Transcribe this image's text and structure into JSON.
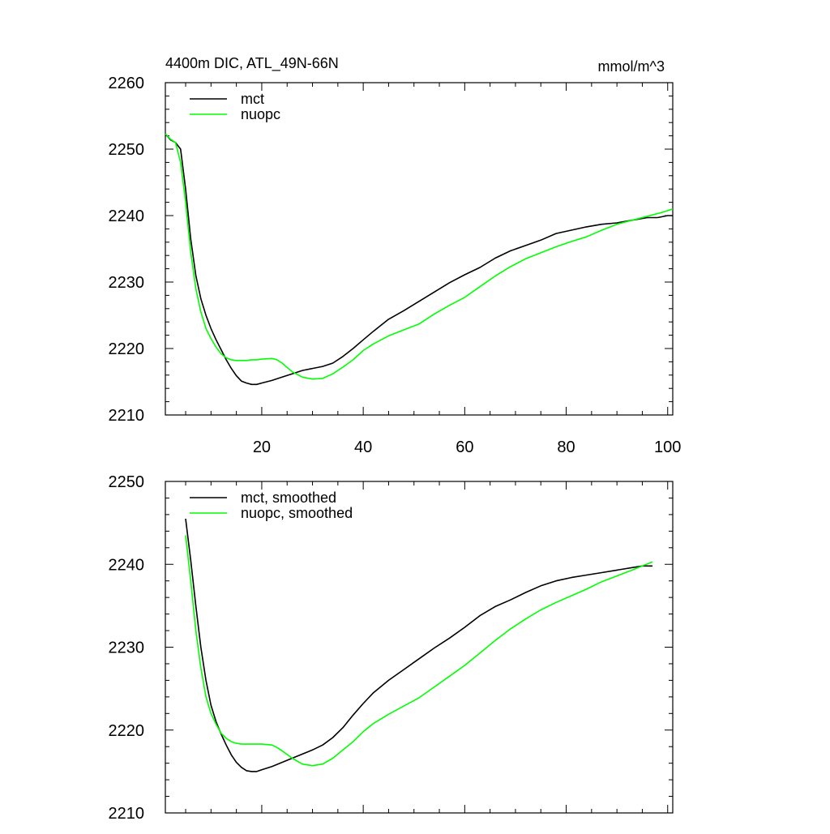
{
  "chart_data": [
    {
      "type": "line",
      "title": "4400m DIC, ATL_49N-66N",
      "units": "mmol/m^3",
      "xlabel": "",
      "ylabel": "",
      "xlim": [
        1,
        101
      ],
      "ylim": [
        2210,
        2260
      ],
      "x_ticks": [
        20,
        40,
        60,
        80,
        100
      ],
      "x_tick_labels": [
        "20",
        "40",
        "60",
        "80",
        "100"
      ],
      "y_ticks": [
        2210,
        2220,
        2230,
        2240,
        2250,
        2260
      ],
      "y_tick_labels": [
        "2210",
        "2220",
        "2230",
        "2240",
        "2250",
        "2260"
      ],
      "legend_position": "top-left",
      "series": [
        {
          "name": "mct",
          "color": "#000000",
          "x": [
            1,
            2,
            3,
            4,
            5,
            6,
            7,
            8,
            9,
            10,
            11,
            12,
            13,
            14,
            15,
            16,
            17,
            18,
            19,
            20,
            22,
            24,
            26,
            28,
            30,
            32,
            34,
            36,
            38,
            40,
            42,
            45,
            48,
            51,
            54,
            57,
            60,
            63,
            66,
            69,
            72,
            75,
            78,
            81,
            84,
            87,
            90,
            93,
            96,
            98,
            100,
            101
          ],
          "values": [
            2252.3,
            2251.4,
            2251.0,
            2250.0,
            2244.0,
            2236.5,
            2231.0,
            2227.5,
            2225.0,
            2223.0,
            2221.3,
            2219.8,
            2218.3,
            2217.0,
            2215.9,
            2215.1,
            2214.8,
            2214.6,
            2214.6,
            2214.8,
            2215.2,
            2215.7,
            2216.2,
            2216.7,
            2217.0,
            2217.3,
            2217.8,
            2218.8,
            2220.0,
            2221.3,
            2222.6,
            2224.4,
            2225.7,
            2227.1,
            2228.5,
            2229.9,
            2231.1,
            2232.2,
            2233.6,
            2234.7,
            2235.5,
            2236.3,
            2237.3,
            2237.8,
            2238.3,
            2238.7,
            2238.9,
            2239.3,
            2239.7,
            2239.7,
            2240.0,
            2240.0
          ]
        },
        {
          "name": "nuopc",
          "color": "#00ff00",
          "x": [
            1,
            2,
            3,
            4,
            5,
            6,
            7,
            8,
            9,
            10,
            11,
            12,
            13,
            14,
            15,
            16,
            17,
            18,
            19,
            20,
            22,
            23,
            24,
            26,
            28,
            30,
            32,
            34,
            36,
            38,
            40,
            42,
            45,
            48,
            51,
            54,
            57,
            60,
            63,
            66,
            69,
            72,
            75,
            78,
            81,
            84,
            87,
            90,
            93,
            96,
            99,
            101
          ],
          "values": [
            2252.3,
            2251.5,
            2251.0,
            2248.0,
            2242.0,
            2234.5,
            2229.0,
            2225.5,
            2223.0,
            2221.5,
            2220.2,
            2219.2,
            2218.6,
            2218.3,
            2218.2,
            2218.2,
            2218.2,
            2218.3,
            2218.3,
            2218.4,
            2218.5,
            2218.3,
            2217.8,
            2216.5,
            2215.7,
            2215.4,
            2215.5,
            2216.2,
            2217.2,
            2218.3,
            2219.7,
            2220.7,
            2221.9,
            2222.8,
            2223.7,
            2225.2,
            2226.5,
            2227.7,
            2229.3,
            2230.9,
            2232.3,
            2233.5,
            2234.4,
            2235.3,
            2236.1,
            2236.8,
            2237.8,
            2238.7,
            2239.3,
            2239.9,
            2240.5,
            2241.0
          ]
        }
      ]
    },
    {
      "type": "line",
      "title": "",
      "xlabel": "",
      "ylabel": "",
      "xlim": [
        1,
        101
      ],
      "ylim": [
        2210,
        2250
      ],
      "x_ticks": [
        20,
        40,
        60,
        80,
        100
      ],
      "y_ticks": [
        2210,
        2220,
        2230,
        2240,
        2250
      ],
      "y_tick_labels": [
        "2210",
        "2220",
        "2230",
        "2240",
        "2250"
      ],
      "legend_position": "top-left",
      "series": [
        {
          "name": "mct, smoothed",
          "color": "#000000",
          "x": [
            5,
            6,
            7,
            8,
            9,
            10,
            11,
            12,
            13,
            14,
            15,
            16,
            17,
            18,
            19,
            20,
            22,
            24,
            26,
            28,
            30,
            32,
            34,
            36,
            38,
            40,
            42,
            45,
            48,
            51,
            54,
            57,
            60,
            63,
            66,
            69,
            72,
            75,
            78,
            81,
            84,
            87,
            90,
            93,
            95,
            97
          ],
          "values": [
            2245.5,
            2240.5,
            2235.0,
            2230.0,
            2226.0,
            2223.0,
            2221.0,
            2219.5,
            2218.2,
            2217.0,
            2216.1,
            2215.5,
            2215.1,
            2215.0,
            2215.0,
            2215.2,
            2215.6,
            2216.1,
            2216.6,
            2217.1,
            2217.6,
            2218.2,
            2219.1,
            2220.3,
            2221.8,
            2223.2,
            2224.5,
            2226.0,
            2227.3,
            2228.6,
            2229.9,
            2231.1,
            2232.4,
            2233.8,
            2234.9,
            2235.7,
            2236.6,
            2237.4,
            2238.0,
            2238.4,
            2238.7,
            2239.0,
            2239.3,
            2239.6,
            2239.8,
            2239.8
          ]
        },
        {
          "name": "nuopc, smoothed",
          "color": "#00ff00",
          "x": [
            5,
            6,
            7,
            8,
            9,
            10,
            11,
            12,
            13,
            14,
            15,
            16,
            17,
            18,
            19,
            20,
            22,
            23,
            24,
            26,
            28,
            30,
            32,
            34,
            36,
            38,
            40,
            42,
            45,
            48,
            51,
            54,
            57,
            60,
            63,
            66,
            69,
            72,
            75,
            78,
            81,
            84,
            87,
            90,
            93,
            95,
            97
          ],
          "values": [
            2243.5,
            2238.0,
            2232.0,
            2227.5,
            2224.0,
            2222.0,
            2220.7,
            2219.6,
            2219.0,
            2218.6,
            2218.4,
            2218.3,
            2218.3,
            2218.3,
            2218.3,
            2218.3,
            2218.2,
            2217.9,
            2217.5,
            2216.6,
            2215.9,
            2215.7,
            2215.9,
            2216.6,
            2217.6,
            2218.6,
            2219.8,
            2220.8,
            2221.9,
            2222.9,
            2223.9,
            2225.2,
            2226.5,
            2227.8,
            2229.3,
            2230.8,
            2232.2,
            2233.4,
            2234.5,
            2235.4,
            2236.2,
            2237.0,
            2237.9,
            2238.6,
            2239.3,
            2239.8,
            2240.3
          ]
        }
      ]
    }
  ]
}
